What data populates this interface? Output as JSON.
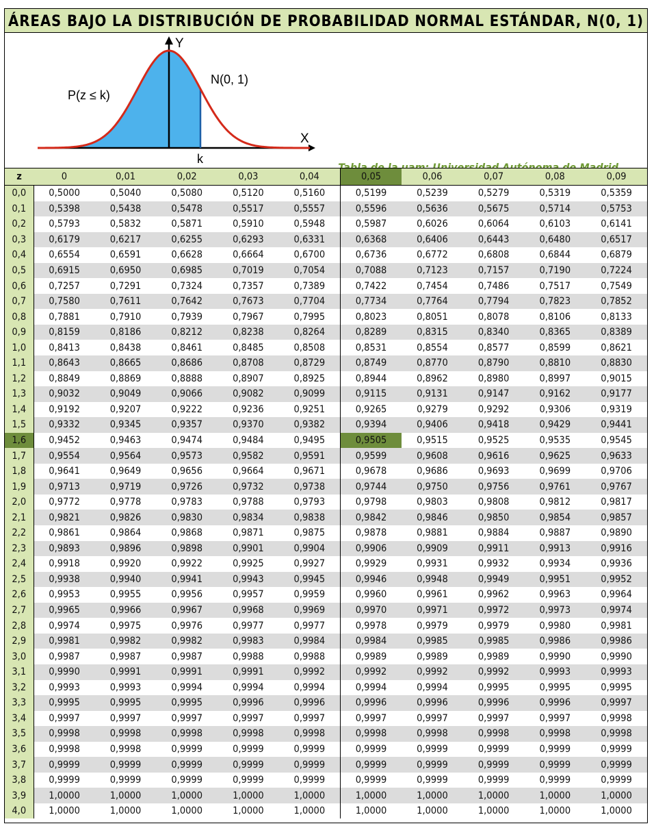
{
  "title": "ÁREAS BAJO LA DISTRIBUCIÓN DE PROBABILIDAD NORMAL ESTÁNDAR, N(0, 1)",
  "figure": {
    "axis_y": "Y",
    "axis_x": "X",
    "k_label": "k",
    "curve_label": "N(0, 1)",
    "area_label": "P(z ≤ k)",
    "credit": "Tabla de la uam: Universidad Autónoma de Madrid",
    "colors": {
      "curve": "#d42a1a",
      "area": "#4db2ec",
      "k_line": "#1b5fa8",
      "axis": "#000000"
    }
  },
  "table": {
    "z_header": "z",
    "columns": [
      "0",
      "0,01",
      "0,02",
      "0,03",
      "0,04",
      "0,05",
      "0,06",
      "0,07",
      "0,08",
      "0,09"
    ],
    "highlight": {
      "column": "0,05",
      "row": "1,6",
      "cell_value": "0,9505"
    },
    "highlight_colors": {
      "strong": "#6e8d3c",
      "light": "#d8e6b3"
    },
    "rows": [
      {
        "z": "0,0",
        "v": [
          "0,5000",
          "0,5040",
          "0,5080",
          "0,5120",
          "0,5160",
          "0,5199",
          "0,5239",
          "0,5279",
          "0,5319",
          "0,5359"
        ]
      },
      {
        "z": "0,1",
        "v": [
          "0,5398",
          "0,5438",
          "0,5478",
          "0,5517",
          "0,5557",
          "0,5596",
          "0,5636",
          "0,5675",
          "0,5714",
          "0,5753"
        ]
      },
      {
        "z": "0,2",
        "v": [
          "0,5793",
          "0,5832",
          "0,5871",
          "0,5910",
          "0,5948",
          "0,5987",
          "0,6026",
          "0,6064",
          "0,6103",
          "0,6141"
        ]
      },
      {
        "z": "0,3",
        "v": [
          "0,6179",
          "0,6217",
          "0,6255",
          "0,6293",
          "0,6331",
          "0,6368",
          "0,6406",
          "0,6443",
          "0,6480",
          "0,6517"
        ]
      },
      {
        "z": "0,4",
        "v": [
          "0,6554",
          "0,6591",
          "0,6628",
          "0,6664",
          "0,6700",
          "0,6736",
          "0,6772",
          "0,6808",
          "0,6844",
          "0,6879"
        ]
      },
      {
        "z": "0,5",
        "v": [
          "0,6915",
          "0,6950",
          "0,6985",
          "0,7019",
          "0,7054",
          "0,7088",
          "0,7123",
          "0,7157",
          "0,7190",
          "0,7224"
        ]
      },
      {
        "z": "0,6",
        "v": [
          "0,7257",
          "0,7291",
          "0,7324",
          "0,7357",
          "0,7389",
          "0,7422",
          "0,7454",
          "0,7486",
          "0,7517",
          "0,7549"
        ]
      },
      {
        "z": "0,7",
        "v": [
          "0,7580",
          "0,7611",
          "0,7642",
          "0,7673",
          "0,7704",
          "0,7734",
          "0,7764",
          "0,7794",
          "0,7823",
          "0,7852"
        ]
      },
      {
        "z": "0,8",
        "v": [
          "0,7881",
          "0,7910",
          "0,7939",
          "0,7967",
          "0,7995",
          "0,8023",
          "0,8051",
          "0,8078",
          "0,8106",
          "0,8133"
        ]
      },
      {
        "z": "0,9",
        "v": [
          "0,8159",
          "0,8186",
          "0,8212",
          "0,8238",
          "0,8264",
          "0,8289",
          "0,8315",
          "0,8340",
          "0,8365",
          "0,8389"
        ]
      },
      {
        "z": "1,0",
        "v": [
          "0,8413",
          "0,8438",
          "0,8461",
          "0,8485",
          "0,8508",
          "0,8531",
          "0,8554",
          "0,8577",
          "0,8599",
          "0,8621"
        ]
      },
      {
        "z": "1,1",
        "v": [
          "0,8643",
          "0,8665",
          "0,8686",
          "0,8708",
          "0,8729",
          "0,8749",
          "0,8770",
          "0,8790",
          "0,8810",
          "0,8830"
        ]
      },
      {
        "z": "1,2",
        "v": [
          "0,8849",
          "0,8869",
          "0,8888",
          "0,8907",
          "0,8925",
          "0,8944",
          "0,8962",
          "0,8980",
          "0,8997",
          "0,9015"
        ]
      },
      {
        "z": "1,3",
        "v": [
          "0,9032",
          "0,9049",
          "0,9066",
          "0,9082",
          "0,9099",
          "0,9115",
          "0,9131",
          "0,9147",
          "0,9162",
          "0,9177"
        ]
      },
      {
        "z": "1,4",
        "v": [
          "0,9192",
          "0,9207",
          "0,9222",
          "0,9236",
          "0,9251",
          "0,9265",
          "0,9279",
          "0,9292",
          "0,9306",
          "0,9319"
        ]
      },
      {
        "z": "1,5",
        "v": [
          "0,9332",
          "0,9345",
          "0,9357",
          "0,9370",
          "0,9382",
          "0,9394",
          "0,9406",
          "0,9418",
          "0,9429",
          "0,9441"
        ]
      },
      {
        "z": "1,6",
        "v": [
          "0,9452",
          "0,9463",
          "0,9474",
          "0,9484",
          "0,9495",
          "0,9505",
          "0,9515",
          "0,9525",
          "0,9535",
          "0,9545"
        ]
      },
      {
        "z": "1,7",
        "v": [
          "0,9554",
          "0,9564",
          "0,9573",
          "0,9582",
          "0,9591",
          "0,9599",
          "0,9608",
          "0,9616",
          "0,9625",
          "0,9633"
        ]
      },
      {
        "z": "1,8",
        "v": [
          "0,9641",
          "0,9649",
          "0,9656",
          "0,9664",
          "0,9671",
          "0,9678",
          "0,9686",
          "0,9693",
          "0,9699",
          "0,9706"
        ]
      },
      {
        "z": "1,9",
        "v": [
          "0,9713",
          "0,9719",
          "0,9726",
          "0,9732",
          "0,9738",
          "0,9744",
          "0,9750",
          "0,9756",
          "0,9761",
          "0,9767"
        ]
      },
      {
        "z": "2,0",
        "v": [
          "0,9772",
          "0,9778",
          "0,9783",
          "0,9788",
          "0,9793",
          "0,9798",
          "0,9803",
          "0,9808",
          "0,9812",
          "0,9817"
        ]
      },
      {
        "z": "2,1",
        "v": [
          "0,9821",
          "0,9826",
          "0,9830",
          "0,9834",
          "0,9838",
          "0,9842",
          "0,9846",
          "0,9850",
          "0,9854",
          "0,9857"
        ]
      },
      {
        "z": "2,2",
        "v": [
          "0,9861",
          "0,9864",
          "0,9868",
          "0,9871",
          "0,9875",
          "0,9878",
          "0,9881",
          "0,9884",
          "0,9887",
          "0,9890"
        ]
      },
      {
        "z": "2,3",
        "v": [
          "0,9893",
          "0,9896",
          "0,9898",
          "0,9901",
          "0,9904",
          "0,9906",
          "0,9909",
          "0,9911",
          "0,9913",
          "0,9916"
        ]
      },
      {
        "z": "2,4",
        "v": [
          "0,9918",
          "0,9920",
          "0,9922",
          "0,9925",
          "0,9927",
          "0,9929",
          "0,9931",
          "0,9932",
          "0,9934",
          "0,9936"
        ]
      },
      {
        "z": "2,5",
        "v": [
          "0,9938",
          "0,9940",
          "0,9941",
          "0,9943",
          "0,9945",
          "0,9946",
          "0,9948",
          "0,9949",
          "0,9951",
          "0,9952"
        ]
      },
      {
        "z": "2,6",
        "v": [
          "0,9953",
          "0,9955",
          "0,9956",
          "0,9957",
          "0,9959",
          "0,9960",
          "0,9961",
          "0,9962",
          "0,9963",
          "0,9964"
        ]
      },
      {
        "z": "2,7",
        "v": [
          "0,9965",
          "0,9966",
          "0,9967",
          "0,9968",
          "0,9969",
          "0,9970",
          "0,9971",
          "0,9972",
          "0,9973",
          "0,9974"
        ]
      },
      {
        "z": "2,8",
        "v": [
          "0,9974",
          "0,9975",
          "0,9976",
          "0,9977",
          "0,9977",
          "0,9978",
          "0,9979",
          "0,9979",
          "0,9980",
          "0,9981"
        ]
      },
      {
        "z": "2,9",
        "v": [
          "0,9981",
          "0,9982",
          "0,9982",
          "0,9983",
          "0,9984",
          "0,9984",
          "0,9985",
          "0,9985",
          "0,9986",
          "0,9986"
        ]
      },
      {
        "z": "3,0",
        "v": [
          "0,9987",
          "0,9987",
          "0,9987",
          "0,9988",
          "0,9988",
          "0,9989",
          "0,9989",
          "0,9989",
          "0,9990",
          "0,9990"
        ]
      },
      {
        "z": "3,1",
        "v": [
          "0,9990",
          "0,9991",
          "0,9991",
          "0,9991",
          "0,9992",
          "0,9992",
          "0,9992",
          "0,9992",
          "0,9993",
          "0,9993"
        ]
      },
      {
        "z": "3,2",
        "v": [
          "0,9993",
          "0,9993",
          "0,9994",
          "0,9994",
          "0,9994",
          "0,9994",
          "0,9994",
          "0,9995",
          "0,9995",
          "0,9995"
        ]
      },
      {
        "z": "3,3",
        "v": [
          "0,9995",
          "0,9995",
          "0,9995",
          "0,9996",
          "0,9996",
          "0,9996",
          "0,9996",
          "0,9996",
          "0,9996",
          "0,9997"
        ]
      },
      {
        "z": "3,4",
        "v": [
          "0,9997",
          "0,9997",
          "0,9997",
          "0,9997",
          "0,9997",
          "0,9997",
          "0,9997",
          "0,9997",
          "0,9997",
          "0,9998"
        ]
      },
      {
        "z": "3,5",
        "v": [
          "0,9998",
          "0,9998",
          "0,9998",
          "0,9998",
          "0,9998",
          "0,9998",
          "0,9998",
          "0,9998",
          "0,9998",
          "0,9998"
        ]
      },
      {
        "z": "3,6",
        "v": [
          "0,9998",
          "0,9998",
          "0,9999",
          "0,9999",
          "0,9999",
          "0,9999",
          "0,9999",
          "0,9999",
          "0,9999",
          "0,9999"
        ]
      },
      {
        "z": "3,7",
        "v": [
          "0,9999",
          "0,9999",
          "0,9999",
          "0,9999",
          "0,9999",
          "0,9999",
          "0,9999",
          "0,9999",
          "0,9999",
          "0,9999"
        ]
      },
      {
        "z": "3,8",
        "v": [
          "0,9999",
          "0,9999",
          "0,9999",
          "0,9999",
          "0,9999",
          "0,9999",
          "0,9999",
          "0,9999",
          "0,9999",
          "0,9999"
        ]
      },
      {
        "z": "3,9",
        "v": [
          "1,0000",
          "1,0000",
          "1,0000",
          "1,0000",
          "1,0000",
          "1,0000",
          "1,0000",
          "1,0000",
          "1,0000",
          "1,0000"
        ]
      },
      {
        "z": "4,0",
        "v": [
          "1,0000",
          "1,0000",
          "1,0000",
          "1,0000",
          "1,0000",
          "1,0000",
          "1,0000",
          "1,0000",
          "1,0000",
          "1,0000"
        ]
      }
    ]
  }
}
